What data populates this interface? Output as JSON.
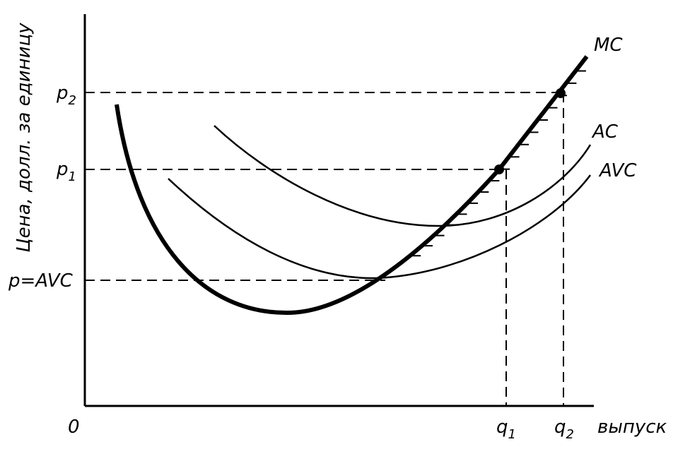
{
  "axes": {
    "y_label": "Цена, долл. за единицу",
    "x_label": "выпуск",
    "origin": "0"
  },
  "x_marks": [
    {
      "text": "q",
      "sub": "1"
    },
    {
      "text": "q",
      "sub": "2"
    }
  ],
  "y_marks": [
    {
      "text": "p",
      "sub": "2"
    },
    {
      "text": "p",
      "sub": "1"
    },
    {
      "text": "p=AVC"
    }
  ],
  "curves": [
    {
      "label": "MC"
    },
    {
      "label": "AC"
    },
    {
      "label": "AVC"
    }
  ]
}
